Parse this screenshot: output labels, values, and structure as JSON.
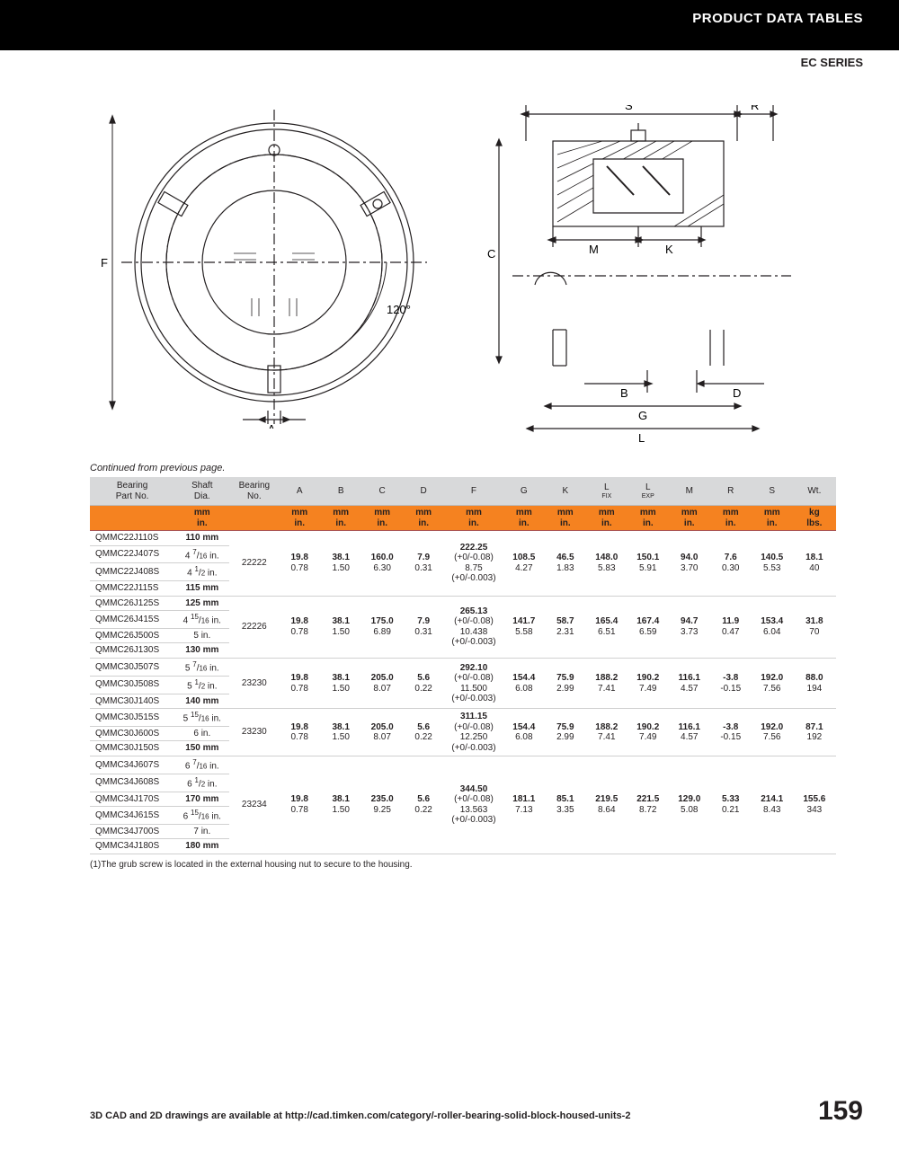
{
  "header": {
    "title": "PRODUCT DATA TABLES",
    "series": "EC SERIES"
  },
  "caption": "Continued from previous page.",
  "footnote": "(1)The grub screw is located in the external housing nut to secure to the housing.",
  "footer": {
    "text": "3D CAD and 2D drawings are available at http://cad.timken.com/category/-roller-bearing-solid-block-housed-units-2",
    "page": "159"
  },
  "diagram": {
    "angle_label": "120°",
    "letters": [
      "F",
      "A",
      "C",
      "S",
      "R",
      "M",
      "K",
      "B",
      "D",
      "G",
      "L"
    ]
  },
  "table": {
    "header1": [
      "Bearing\nPart No.",
      "Shaft\nDia.",
      "Bearing\nNo.",
      "A",
      "B",
      "C",
      "D",
      "F",
      "G",
      "K",
      "L|FIX",
      "L|EXP",
      "M",
      "R",
      "S",
      "Wt."
    ],
    "header2_top": [
      "",
      "mm",
      "",
      "mm",
      "mm",
      "mm",
      "mm",
      "mm",
      "mm",
      "mm",
      "mm",
      "mm",
      "mm",
      "mm",
      "mm",
      "kg"
    ],
    "header2_bot": [
      "",
      "in.",
      "",
      "in.",
      "in.",
      "in.",
      "in.",
      "in.",
      "in.",
      "in.",
      "in.",
      "in.",
      "in.",
      "in.",
      "in.",
      "lbs."
    ],
    "groups": [
      {
        "rows": [
          {
            "part": "QMMC22J110S",
            "shaft": "110 mm",
            "bold": true
          },
          {
            "part": "QMMC22J407S",
            "shaft": "4 7/16 in."
          },
          {
            "part": "QMMC22J408S",
            "shaft": "4 1/2 in."
          },
          {
            "part": "QMMC22J115S",
            "shaft": "115 mm",
            "bold": true
          }
        ],
        "bearing": "22222",
        "dims": {
          "A": [
            "19.8",
            "0.78"
          ],
          "B": [
            "38.1",
            "1.50"
          ],
          "C": [
            "160.0",
            "6.30"
          ],
          "D": [
            "7.9",
            "0.31"
          ],
          "F": [
            "222.25",
            "(+0/-0.08)",
            "8.75",
            "(+0/-0.003)"
          ],
          "G": [
            "108.5",
            "4.27"
          ],
          "K": [
            "46.5",
            "1.83"
          ],
          "Lfix": [
            "148.0",
            "5.83"
          ],
          "Lexp": [
            "150.1",
            "5.91"
          ],
          "M": [
            "94.0",
            "3.70"
          ],
          "R": [
            "7.6",
            "0.30"
          ],
          "S": [
            "140.5",
            "5.53"
          ],
          "Wt": [
            "18.1",
            "40"
          ]
        }
      },
      {
        "rows": [
          {
            "part": "QMMC26J125S",
            "shaft": "125 mm",
            "bold": true
          },
          {
            "part": "QMMC26J415S",
            "shaft": "4 15/16 in."
          },
          {
            "part": "QMMC26J500S",
            "shaft": "5 in."
          },
          {
            "part": "QMMC26J130S",
            "shaft": "130 mm",
            "bold": true
          }
        ],
        "bearing": "22226",
        "dims": {
          "A": [
            "19.8",
            "0.78"
          ],
          "B": [
            "38.1",
            "1.50"
          ],
          "C": [
            "175.0",
            "6.89"
          ],
          "D": [
            "7.9",
            "0.31"
          ],
          "F": [
            "265.13",
            "(+0/-0.08)",
            "10.438",
            "(+0/-0.003)"
          ],
          "G": [
            "141.7",
            "5.58"
          ],
          "K": [
            "58.7",
            "2.31"
          ],
          "Lfix": [
            "165.4",
            "6.51"
          ],
          "Lexp": [
            "167.4",
            "6.59"
          ],
          "M": [
            "94.7",
            "3.73"
          ],
          "R": [
            "11.9",
            "0.47"
          ],
          "S": [
            "153.4",
            "6.04"
          ],
          "Wt": [
            "31.8",
            "70"
          ]
        }
      },
      {
        "rows": [
          {
            "part": "QMMC30J507S",
            "shaft": "5 7/16 in."
          },
          {
            "part": "QMMC30J508S",
            "shaft": "5 1/2 in."
          },
          {
            "part": "QMMC30J140S",
            "shaft": "140 mm",
            "bold": true
          }
        ],
        "bearing": "23230",
        "dims": {
          "A": [
            "19.8",
            "0.78"
          ],
          "B": [
            "38.1",
            "1.50"
          ],
          "C": [
            "205.0",
            "8.07"
          ],
          "D": [
            "5.6",
            "0.22"
          ],
          "F": [
            "292.10",
            "(+0/-0.08)",
            "11.500",
            "(+0/-0.003)"
          ],
          "G": [
            "154.4",
            "6.08"
          ],
          "K": [
            "75.9",
            "2.99"
          ],
          "Lfix": [
            "188.2",
            "7.41"
          ],
          "Lexp": [
            "190.2",
            "7.49"
          ],
          "M": [
            "116.1",
            "4.57"
          ],
          "R": [
            "-3.8",
            "-0.15"
          ],
          "S": [
            "192.0",
            "7.56"
          ],
          "Wt": [
            "88.0",
            "194"
          ]
        }
      },
      {
        "rows": [
          {
            "part": "QMMC30J515S",
            "shaft": "5 15/16 in."
          },
          {
            "part": "QMMC30J600S",
            "shaft": "6 in."
          },
          {
            "part": "QMMC30J150S",
            "shaft": "150 mm",
            "bold": true
          }
        ],
        "bearing": "23230",
        "dims": {
          "A": [
            "19.8",
            "0.78"
          ],
          "B": [
            "38.1",
            "1.50"
          ],
          "C": [
            "205.0",
            "8.07"
          ],
          "D": [
            "5.6",
            "0.22"
          ],
          "F": [
            "311.15",
            "(+0/-0.08)",
            "12.250",
            "(+0/-0.003)"
          ],
          "G": [
            "154.4",
            "6.08"
          ],
          "K": [
            "75.9",
            "2.99"
          ],
          "Lfix": [
            "188.2",
            "7.41"
          ],
          "Lexp": [
            "190.2",
            "7.49"
          ],
          "M": [
            "116.1",
            "4.57"
          ],
          "R": [
            "-3.8",
            "-0.15"
          ],
          "S": [
            "192.0",
            "7.56"
          ],
          "Wt": [
            "87.1",
            "192"
          ]
        }
      },
      {
        "rows": [
          {
            "part": "QMMC34J607S",
            "shaft": "6 7/16 in."
          },
          {
            "part": "QMMC34J608S",
            "shaft": "6 1/2 in."
          },
          {
            "part": "QMMC34J170S",
            "shaft": "170 mm",
            "bold": true
          },
          {
            "part": "QMMC34J615S",
            "shaft": "6 15/16 in."
          },
          {
            "part": "QMMC34J700S",
            "shaft": "7 in."
          },
          {
            "part": "QMMC34J180S",
            "shaft": "180 mm",
            "bold": true
          }
        ],
        "bearing": "23234",
        "dims": {
          "A": [
            "19.8",
            "0.78"
          ],
          "B": [
            "38.1",
            "1.50"
          ],
          "C": [
            "235.0",
            "9.25"
          ],
          "D": [
            "5.6",
            "0.22"
          ],
          "F": [
            "344.50",
            "(+0/-0.08)",
            "13.563",
            "(+0/-0.003)"
          ],
          "G": [
            "181.1",
            "7.13"
          ],
          "K": [
            "85.1",
            "3.35"
          ],
          "Lfix": [
            "219.5",
            "8.64"
          ],
          "Lexp": [
            "221.5",
            "8.72"
          ],
          "M": [
            "129.0",
            "5.08"
          ],
          "R": [
            "5.33",
            "0.21"
          ],
          "S": [
            "214.1",
            "8.43"
          ],
          "Wt": [
            "155.6",
            "343"
          ]
        }
      }
    ]
  }
}
